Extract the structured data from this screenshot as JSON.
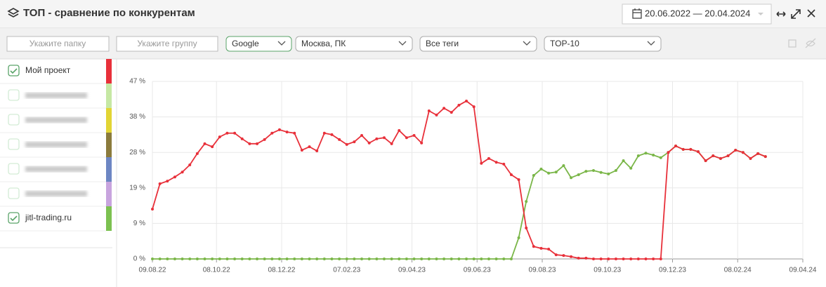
{
  "header": {
    "title": "ТОП - сравнение по конкурентам",
    "date_range": "20.06.2022 — 20.04.2024"
  },
  "filters": {
    "folder_placeholder": "Укажите папку",
    "group_placeholder": "Укажите группу",
    "engine": "Google",
    "region": "Москва, ПК",
    "tags": "Все теги",
    "top": "TOP-10"
  },
  "sidebar": {
    "items": [
      {
        "name": "Мой проект",
        "color": "#e8303a",
        "checked": true
      },
      {
        "name": null,
        "color": "#c6e8a4",
        "checked": false
      },
      {
        "name": null,
        "color": "#e2d534",
        "checked": false
      },
      {
        "name": null,
        "color": "#8b7b3c",
        "checked": false
      },
      {
        "name": null,
        "color": "#6d86c3",
        "checked": false
      },
      {
        "name": null,
        "color": "#c8a4de",
        "checked": false
      },
      {
        "name": "jitl-trading.ru",
        "color": "#7cc150",
        "checked": true
      }
    ]
  },
  "chart_data": {
    "type": "line",
    "grid": true,
    "x": [
      "09.08.22",
      "16.08.22",
      "23.08.22",
      "30.08.22",
      "06.09.22",
      "13.09.22",
      "20.09.22",
      "27.09.22",
      "04.10.22",
      "11.10.22",
      "18.10.22",
      "25.10.22",
      "01.11.22",
      "08.11.22",
      "15.11.22",
      "22.11.22",
      "29.11.22",
      "06.12.22",
      "13.12.22",
      "20.12.22",
      "27.12.22",
      "03.01.23",
      "10.01.23",
      "17.01.23",
      "24.01.23",
      "31.01.23",
      "07.02.23",
      "14.02.23",
      "21.02.23",
      "28.02.23",
      "07.03.23",
      "14.03.23",
      "21.03.23",
      "28.03.23",
      "04.04.23",
      "11.04.23",
      "18.04.23",
      "25.04.23",
      "02.05.23",
      "09.05.23",
      "16.05.23",
      "23.05.23",
      "30.05.23",
      "06.06.23",
      "13.06.23",
      "20.06.23",
      "27.06.23",
      "04.07.23",
      "11.07.23",
      "18.07.23",
      "25.07.23",
      "01.08.23",
      "08.08.23",
      "15.08.23",
      "22.08.23",
      "29.08.23",
      "05.09.23",
      "12.09.23",
      "19.09.23",
      "26.09.23",
      "03.10.23",
      "10.10.23",
      "17.10.23",
      "24.10.23",
      "31.10.23",
      "07.11.23",
      "14.11.23",
      "21.11.23",
      "28.11.23",
      "05.12.23",
      "12.12.23",
      "19.12.23",
      "26.12.23",
      "02.01.24",
      "09.01.24",
      "16.01.24",
      "23.01.24",
      "30.01.24",
      "06.02.24",
      "13.02.24",
      "20.02.24",
      "27.02.24",
      "05.03.24"
    ],
    "series": [
      {
        "color": "#e8303a",
        "values": [
          13.2,
          19.9,
          20.6,
          21.7,
          23.0,
          24.9,
          27.9,
          30.5,
          29.7,
          32.3,
          33.3,
          33.3,
          31.8,
          30.5,
          30.5,
          31.6,
          33.3,
          34.2,
          33.6,
          33.3,
          28.8,
          29.7,
          28.6,
          33.3,
          32.9,
          31.6,
          30.3,
          31.0,
          32.7,
          30.7,
          31.8,
          32.1,
          30.5,
          34.0,
          32.1,
          32.7,
          30.7,
          39.2,
          38.1,
          39.9,
          38.8,
          40.7,
          41.8,
          40.3,
          25.3,
          26.6,
          25.6,
          25.1,
          22.3,
          21.0,
          8.2,
          3.3,
          2.8,
          2.6,
          1.1,
          0.9,
          0.6,
          0.2,
          0.2,
          0,
          0,
          0,
          0,
          0,
          0,
          0,
          0,
          0,
          0,
          28.2,
          29.9,
          29.0,
          29.0,
          28.4,
          26.0,
          27.3,
          26.6,
          27.3,
          28.8,
          28.2,
          26.6,
          27.9,
          27.1
        ]
      },
      {
        "color": "#7ab648",
        "values": [
          0,
          0,
          0,
          0,
          0,
          0,
          0,
          0,
          0,
          0,
          0,
          0,
          0,
          0,
          0,
          0,
          0,
          0,
          0,
          0,
          0,
          0,
          0,
          0,
          0,
          0,
          0,
          0,
          0,
          0,
          0,
          0,
          0,
          0,
          0,
          0,
          0,
          0,
          0,
          0,
          0,
          0,
          0,
          0,
          0,
          0,
          0,
          0,
          0,
          5.6,
          15.2,
          22.1,
          23.8,
          22.7,
          23.0,
          24.7,
          21.5,
          22.3,
          23.2,
          23.4,
          22.9,
          22.5,
          23.4,
          26.0,
          24.0,
          27.3,
          28.0,
          27.5,
          26.8,
          28.2,
          29.9,
          29.0,
          29.0,
          28.4,
          26.0,
          27.3,
          26.6,
          27.3,
          28.8,
          28.2,
          26.6,
          27.9,
          27.1
        ]
      }
    ],
    "xlim": [
      "09.08.22",
      "09.04.24"
    ],
    "xticks": [
      "09.08.22",
      "08.10.22",
      "08.12.22",
      "07.02.23",
      "09.04.23",
      "09.06.23",
      "09.08.23",
      "09.10.23",
      "09.12.23",
      "08.02.24",
      "09.04.24"
    ],
    "ylim": [
      0,
      47
    ],
    "yticks": [
      {
        "value": 0,
        "label": "0 %"
      },
      {
        "value": 9.4,
        "label": "9 %"
      },
      {
        "value": 18.8,
        "label": "19 %"
      },
      {
        "value": 28.2,
        "label": "28 %"
      },
      {
        "value": 37.6,
        "label": "38 %"
      },
      {
        "value": 47,
        "label": "47 %"
      }
    ]
  }
}
